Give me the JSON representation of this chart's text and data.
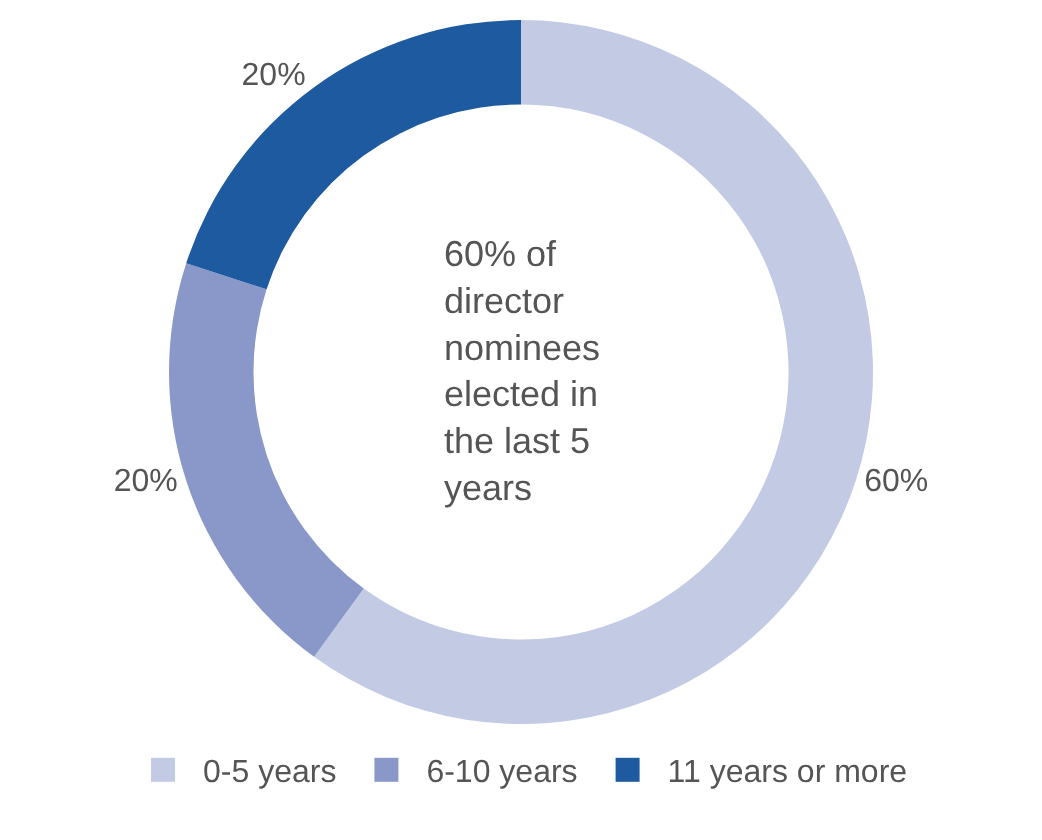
{
  "chart_data": {
    "type": "donut",
    "categories": [
      "0-5 years",
      "6-10 years",
      "11 years or more"
    ],
    "values": [
      60,
      20,
      20
    ],
    "colors": [
      "#c3cae4",
      "#8a98c9",
      "#1d5a9f"
    ],
    "value_labels": [
      "60%",
      "20%",
      "20%"
    ],
    "annotations": [
      "60% of director nominees elected in the last 5 years"
    ],
    "legend": "bottom"
  }
}
